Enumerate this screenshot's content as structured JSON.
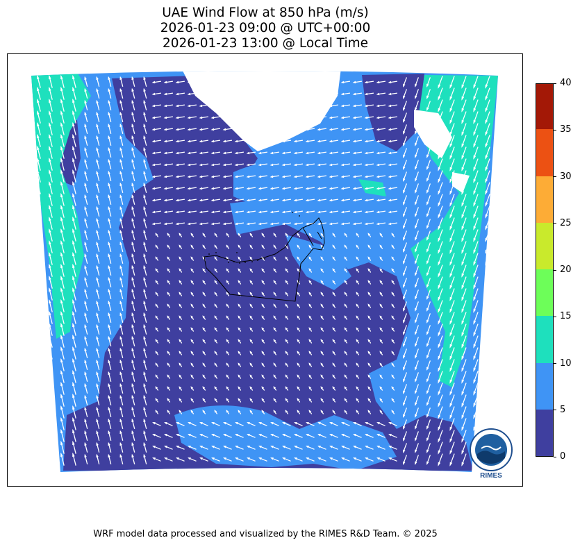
{
  "title": {
    "line1": "UAE Wind Flow at 850 hPa (m/s)",
    "line2": "2026-01-23 09:00 @ UTC+00:00",
    "line3": "2026-01-23 13:00 @ Local Time"
  },
  "colorbar": {
    "ticks": [
      "0",
      "5",
      "10",
      "15",
      "20",
      "25",
      "30",
      "35",
      "40"
    ],
    "colors": [
      "#3f3f9f",
      "#3f94f5",
      "#1ee0bd",
      "#6dfe59",
      "#c9ea2c",
      "#fdac36",
      "#ec5113",
      "#a31806"
    ]
  },
  "logo": {
    "text": "RIMES"
  },
  "footer": "WRF model data processed and visualized by the RIMES R&D Team. © 2025"
}
